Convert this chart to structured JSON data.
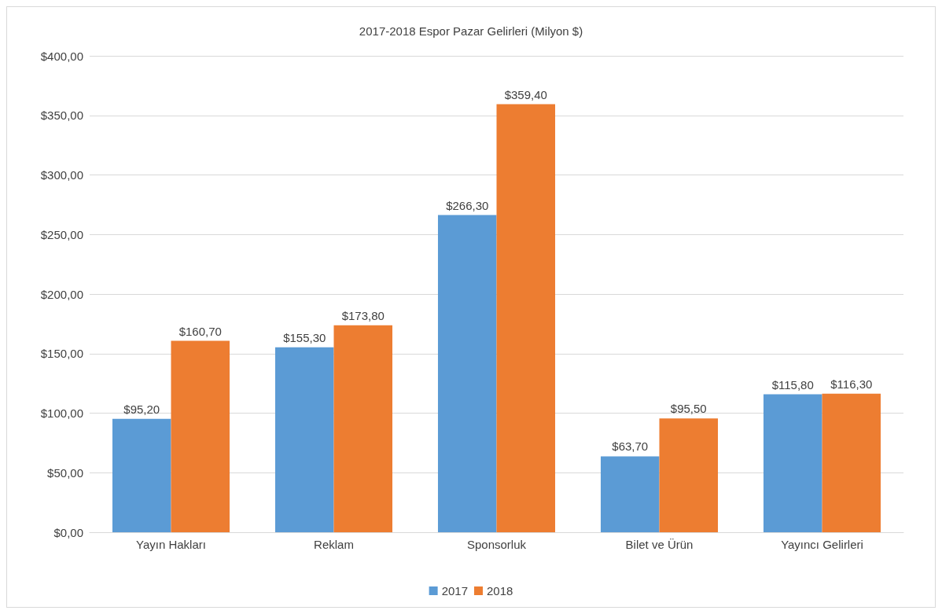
{
  "chart_data": {
    "type": "bar",
    "title": "2017-2018 Espor Pazar Gelirleri (Milyon $)",
    "categories": [
      "Yayın Hakları",
      "Reklam",
      "Sponsorluk",
      "Bilet ve Ürün",
      "Yayıncı Gelirleri"
    ],
    "series": [
      {
        "name": "2017",
        "color": "#5b9bd5",
        "values": [
          95.2,
          155.3,
          266.3,
          63.7,
          115.8
        ],
        "value_labels": [
          "$95,20",
          "$155,30",
          "$266,30",
          "$63,70",
          "$115,80"
        ]
      },
      {
        "name": "2018",
        "color": "#ed7d31",
        "values": [
          160.7,
          173.8,
          359.4,
          95.5,
          116.3
        ],
        "value_labels": [
          "$160,70",
          "$173,80",
          "$359,40",
          "$95,50",
          "$116,30"
        ]
      }
    ],
    "ylim": [
      0,
      400
    ],
    "yticks": [
      {
        "value": 0,
        "label": "$0,00"
      },
      {
        "value": 50,
        "label": "$50,00"
      },
      {
        "value": 100,
        "label": "$100,00"
      },
      {
        "value": 150,
        "label": "$150,00"
      },
      {
        "value": 200,
        "label": "$200,00"
      },
      {
        "value": 250,
        "label": "$250,00"
      },
      {
        "value": 300,
        "label": "$300,00"
      },
      {
        "value": 350,
        "label": "$350,00"
      },
      {
        "value": 400,
        "label": "$400,00"
      }
    ],
    "grid": "y",
    "legend": "bottom"
  }
}
